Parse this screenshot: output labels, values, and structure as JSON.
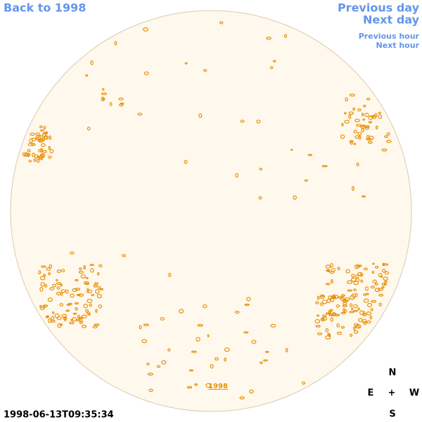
{
  "navigation": {
    "back_to_year": "Back to 1998",
    "previous_day": "Previous day",
    "next_day": "Next day",
    "previous_hour": "Previous hour",
    "next_hour": "Next hour"
  },
  "image": {
    "year_link": "1998",
    "timestamp": "1998-06-13T09:35:34"
  },
  "compass": {
    "north": "N",
    "east": "E",
    "center": "+",
    "west": "W",
    "south": "S"
  }
}
